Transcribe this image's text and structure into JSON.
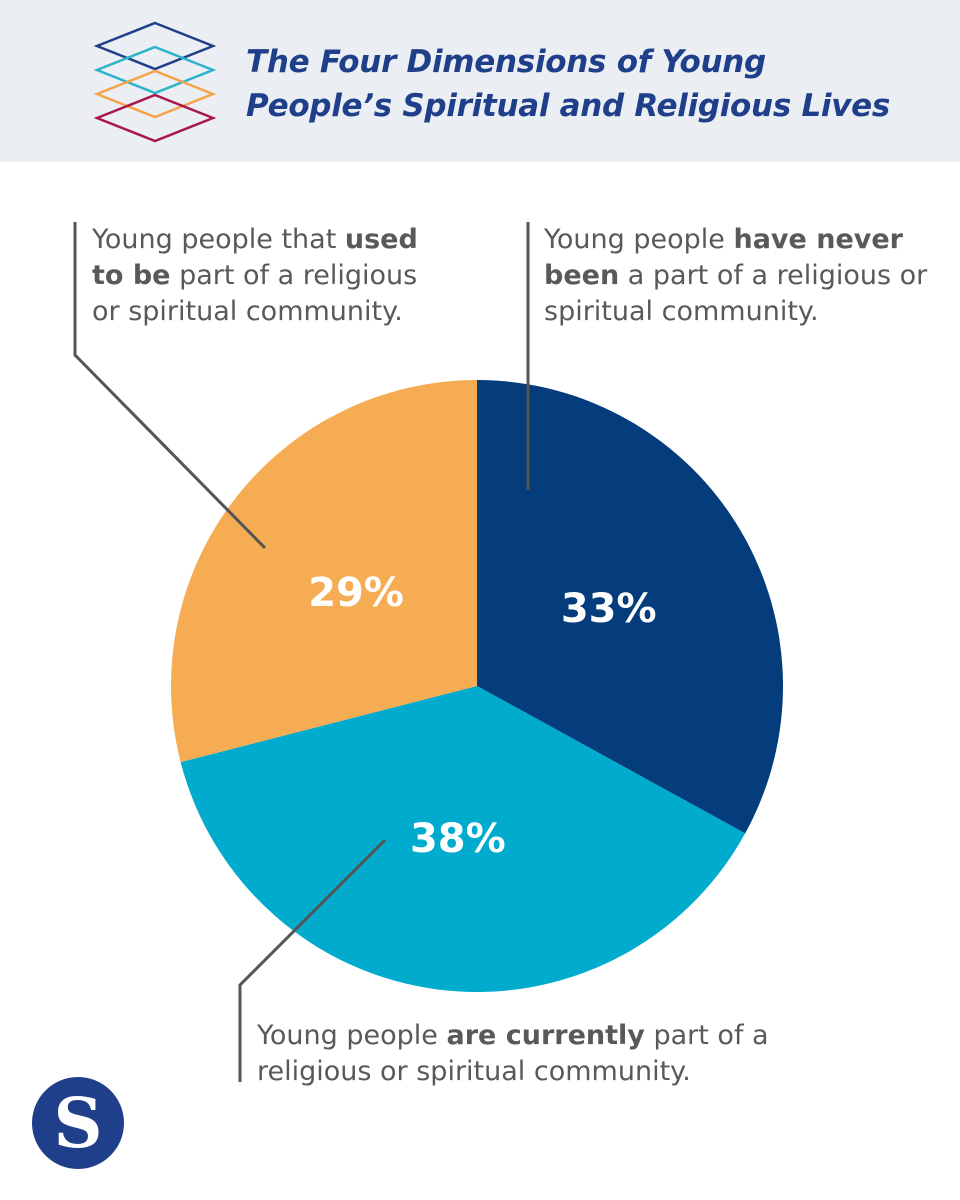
{
  "header": {
    "title_line1": "The Four Dimensions of Young",
    "title_line2": "People’s Spiritual and Religious Lives",
    "logo_icon": "stacked-diamonds-icon",
    "logo_colors": [
      "#1f3f8a",
      "#2bb3cd",
      "#f5a44a",
      "#a8174f"
    ]
  },
  "chart_data": {
    "type": "pie",
    "title": "The Four Dimensions of Young People’s Spiritual and Religious Lives",
    "slices": [
      {
        "key": "never",
        "value": 33,
        "label": "33%",
        "color": "#053c7c",
        "desc_prefix": "Young people ",
        "desc_bold": "have never been",
        "desc_suffix": " a part of a religious or spiritual community."
      },
      {
        "key": "currently",
        "value": 38,
        "label": "38%",
        "color": "#00abcd",
        "desc_prefix": "Young people ",
        "desc_bold": "are currently",
        "desc_suffix": " part of a religious or spiritual community."
      },
      {
        "key": "used_to_be",
        "value": 29,
        "label": "29%",
        "color": "#f6ac52",
        "desc_prefix": "Young people that ",
        "desc_bold": "used to be",
        "desc_suffix": " part of a religious or spiritual community."
      }
    ]
  },
  "brand": {
    "letter": "S",
    "icon": "brand-s-logo",
    "color": "#1f3f8a"
  }
}
